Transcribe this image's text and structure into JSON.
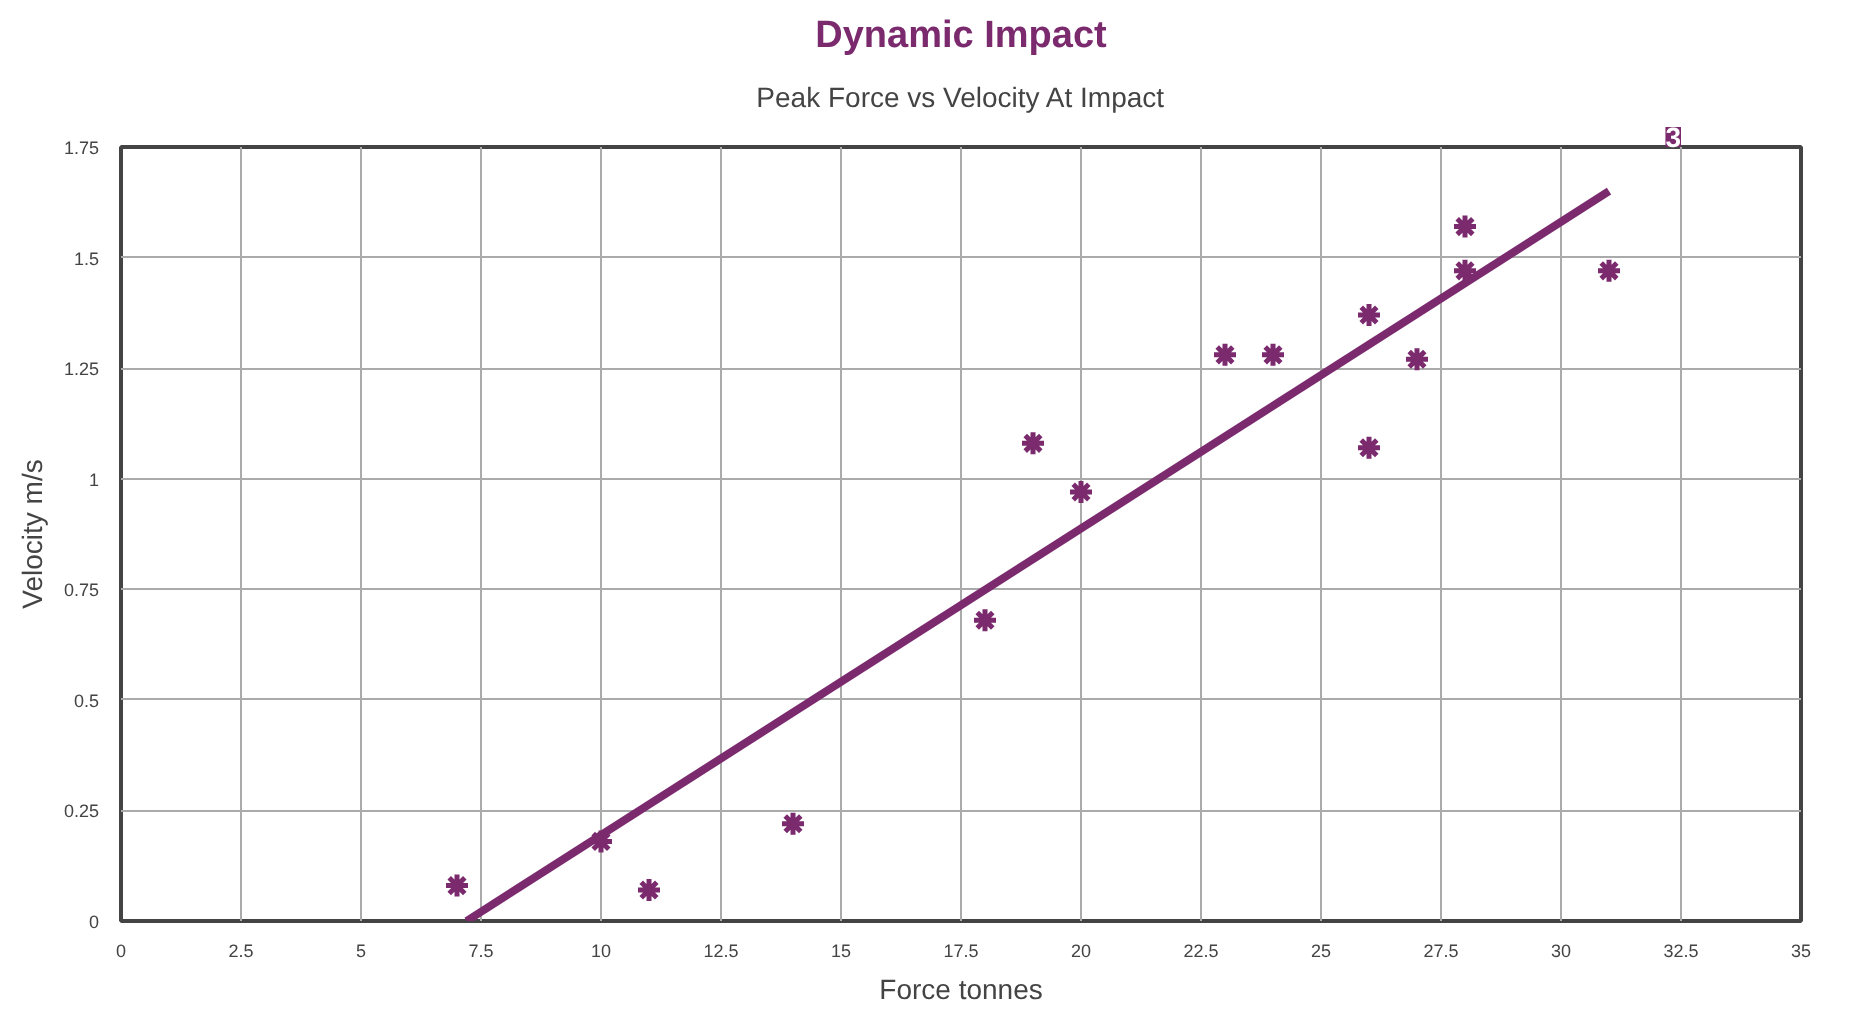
{
  "chart_data": {
    "type": "scatter",
    "title": "Dynamic Impact",
    "subtitle": "Peak Force vs Velocity At Impact",
    "xlabel": "Force tonnes",
    "ylabel": "Velocity m/s",
    "annotations": [
      "3"
    ],
    "xlim": [
      0,
      35
    ],
    "ylim": [
      0,
      1.75
    ],
    "xticks": [
      0,
      2.5,
      5,
      7.5,
      10,
      12.5,
      15,
      17.5,
      20,
      22.5,
      25,
      27.5,
      30,
      32.5,
      35
    ],
    "yticks": [
      0,
      0.25,
      0.5,
      0.75,
      1,
      1.25,
      1.5,
      1.75
    ],
    "grid": true,
    "series": [
      {
        "marker": "cross",
        "color": "#7b2a6e",
        "x": [
          7,
          10,
          11,
          14,
          18,
          19,
          20,
          23,
          24,
          26,
          26,
          27,
          28,
          28,
          31
        ],
        "values": [
          0.08,
          0.18,
          0.07,
          0.22,
          0.68,
          1.08,
          0.97,
          1.28,
          1.28,
          1.37,
          1.07,
          1.27,
          1.57,
          1.47,
          1.47
        ]
      },
      {
        "type": "line",
        "color": "#7b2a6e",
        "x": [
          7.2,
          31
        ],
        "values": [
          0,
          1.65
        ]
      }
    ]
  }
}
